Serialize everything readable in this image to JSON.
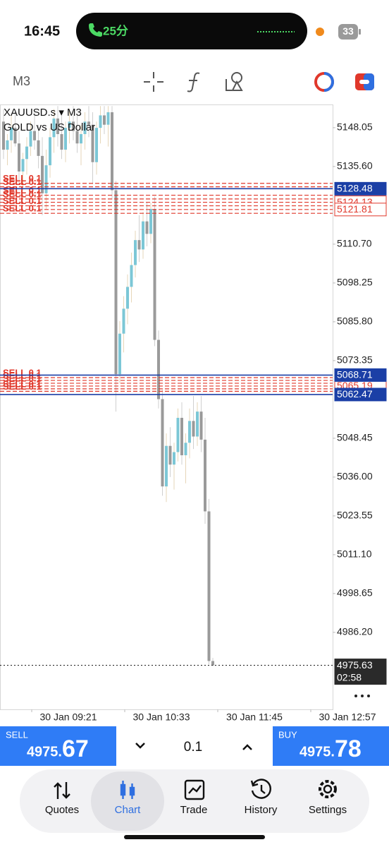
{
  "status_bar": {
    "time": "16:45",
    "call": "25分",
    "battery": "33"
  },
  "toolbar": {
    "timeframe": "M3"
  },
  "chart_data": {
    "type": "candlestick",
    "title": "XAUUSD.s ▾ M3",
    "subtitle": "GOLD vs US Dollar",
    "x_labels": [
      "30 Jan 09:21",
      "30 Jan 10:33",
      "30 Jan 11:45",
      "30 Jan 12:57"
    ],
    "open": [
      5150,
      5141,
      5144,
      5148,
      5143,
      5134,
      5138,
      5142,
      5147,
      5144,
      5139,
      5127,
      5136,
      5145,
      5151,
      5146,
      5141,
      5148,
      5150,
      5147,
      5143,
      5146,
      5150,
      5149,
      5137,
      5148,
      5152,
      5149,
      5153,
      5128,
      5069,
      5082,
      5090,
      5097,
      5104,
      5112,
      5109,
      5118,
      5114,
      5122,
      5080,
      5061,
      5033,
      5046,
      5040,
      5044,
      5055,
      5043,
      5047,
      5054,
      5049,
      5057,
      5048,
      5025,
      4977
    ],
    "high": [
      5154,
      5146,
      5152,
      5153,
      5147,
      5140,
      5145,
      5150,
      5153,
      5149,
      5145,
      5141,
      5148,
      5154,
      5155,
      5152,
      5150,
      5154,
      5155,
      5152,
      5149,
      5153,
      5155,
      5153,
      5150,
      5155,
      5155,
      5155,
      5155,
      5131,
      5086,
      5094,
      5101,
      5108,
      5115,
      5120,
      5121,
      5124,
      5124,
      5126,
      5083,
      5064,
      5050,
      5052,
      5047,
      5058,
      5060,
      5050,
      5058,
      5062,
      5060,
      5062,
      5055,
      5029,
      4978
    ],
    "low": [
      5138,
      5136,
      5140,
      5142,
      5130,
      5128,
      5133,
      5139,
      5141,
      5135,
      5120,
      5122,
      5132,
      5140,
      5142,
      5138,
      5137,
      5143,
      5144,
      5140,
      5136,
      5141,
      5145,
      5130,
      5133,
      5143,
      5146,
      5142,
      5125,
      5057,
      5066,
      5076,
      5085,
      5092,
      5100,
      5105,
      5106,
      5110,
      5111,
      5078,
      5058,
      5030,
      5028,
      5036,
      5032,
      5041,
      5040,
      5034,
      5042,
      5045,
      5046,
      5044,
      5021,
      4976,
      4975.5
    ],
    "close": [
      5141,
      5144,
      5148,
      5143,
      5134,
      5138,
      5142,
      5147,
      5144,
      5139,
      5127,
      5136,
      5145,
      5151,
      5146,
      5141,
      5148,
      5150,
      5147,
      5143,
      5146,
      5150,
      5149,
      5137,
      5148,
      5152,
      5149,
      5153,
      5128,
      5069,
      5082,
      5090,
      5097,
      5104,
      5112,
      5109,
      5118,
      5114,
      5122,
      5080,
      5061,
      5033,
      5046,
      5040,
      5044,
      5055,
      5043,
      5047,
      5054,
      5049,
      5057,
      5048,
      5025,
      4977,
      4975.6
    ],
    "up_color": "#7cc7d6",
    "down_color": "#9a9a9a",
    "ylim": [
      4961.5,
      5155.5
    ],
    "yticks": [
      5148.05,
      {
        "value": 5135.6,
        "label": "5135.60"
      },
      {
        "value": 5110.7,
        "label": "5110.70"
      },
      5098.25,
      {
        "value": 5085.8,
        "label": "5085.80"
      },
      5073.35,
      5048.45,
      {
        "value": 5036,
        "label": "5036.00"
      },
      5023.55,
      {
        "value": 5011.1,
        "label": "5011.10"
      },
      4998.65,
      {
        "value": 4986.2,
        "label": "4986.20"
      }
    ],
    "order_color": "#e0382b",
    "orders": [
      {
        "name": "SELL 0.1",
        "value": 5130.2
      },
      {
        "name": "SELL 0.1",
        "value": 5129.1
      },
      {
        "name": "SELL 0.1",
        "value": 5126.4
      },
      {
        "name": "SELL 0.1",
        "value": 5125.2
      },
      {
        "name": "SELL 0.1",
        "value": 5123.0
      },
      {
        "name": "SELL 0.1",
        "value": 5120.6
      },
      {
        "name": "SELL 0.1",
        "value": 5067.9
      },
      {
        "name": "SELL 0.1",
        "value": 5067.0
      },
      {
        "name": "SELL 0.1",
        "value": 5066.1
      },
      {
        "name": "SELL 0.1",
        "value": 5064.3
      },
      {
        "name": "SELL 0.1",
        "value": 5063.5
      }
    ],
    "price_lines": [
      {
        "value": 5124.13,
        "color": "#e0382b",
        "line": "dashed",
        "box": "outline"
      },
      {
        "value": 5121.81,
        "color": "#e0382b",
        "line": "dashed",
        "box": "outline"
      },
      {
        "value": 5065.19,
        "color": "#e0382b",
        "line": "dashed",
        "box": "outline"
      },
      {
        "value": 5128.48,
        "color": "#1b3fa6",
        "line": "solid",
        "box": "filled"
      },
      {
        "value": 5068.71,
        "color": "#1b3fa6",
        "line": "solid",
        "box": "filled"
      },
      {
        "value": 5062.47,
        "color": "#1b3fa6",
        "line": "solid",
        "box": "filled"
      },
      {
        "value": 4975.63,
        "color": "#2a2a2a",
        "line": "dotted",
        "box": "filled",
        "timer": "02:58"
      }
    ]
  },
  "trade_panel": {
    "sell": {
      "label": "SELL",
      "price": "4975.",
      "pips": "67"
    },
    "volume": "0.1",
    "buy": {
      "label": "BUY",
      "price": "4975.",
      "pips": "78"
    }
  },
  "nav": {
    "tabs": [
      "Quotes",
      "Chart",
      "Trade",
      "History",
      "Settings"
    ],
    "active_tab": 1
  }
}
